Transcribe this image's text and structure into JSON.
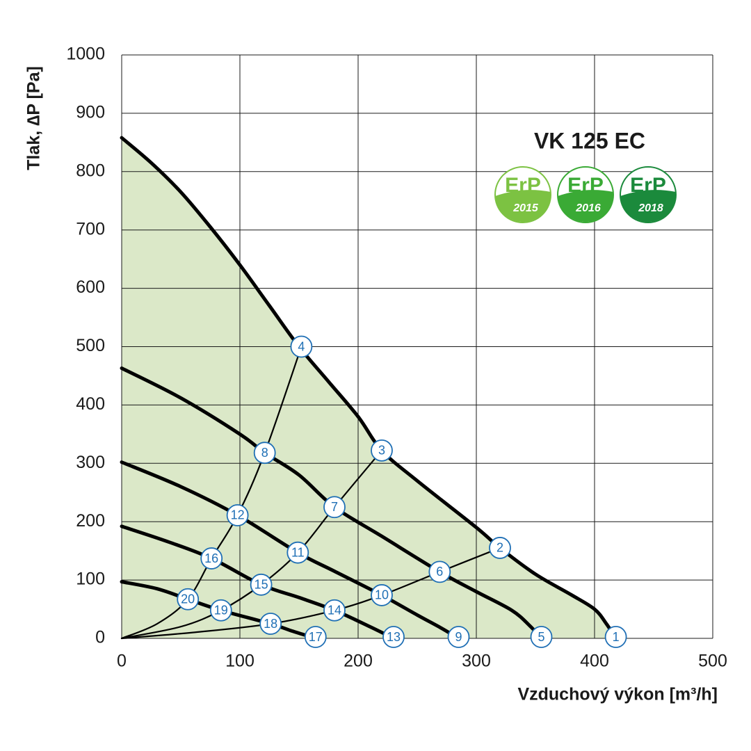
{
  "chart_data": {
    "type": "line",
    "title": "VK 125 EC",
    "x_label": "Vzduchový výkon [m³/h]",
    "y_label": "Tlak, ∆P [Pa]",
    "xlim": [
      0,
      500
    ],
    "ylim": [
      0,
      1000
    ],
    "xticks": [
      0,
      100,
      200,
      300,
      400,
      500
    ],
    "yticks": [
      0,
      100,
      200,
      300,
      400,
      500,
      600,
      700,
      800,
      900,
      1000
    ],
    "grid": true,
    "fill_color": "#dbe8c8",
    "series": [
      {
        "color": "#000000",
        "weight": "heavy",
        "fill": true,
        "x": [
          0,
          25,
          50,
          75,
          100,
          125,
          150,
          175,
          200,
          220,
          250,
          300,
          320,
          350,
          380,
          400,
          410,
          418
        ],
        "values": [
          858,
          815,
          765,
          705,
          640,
          570,
          500,
          440,
          380,
          322,
          270,
          190,
          155,
          110,
          75,
          50,
          25,
          0
        ]
      },
      {
        "color": "#000000",
        "weight": "heavy",
        "x": [
          0,
          50,
          100,
          121,
          150,
          180,
          220,
          269,
          300,
          330,
          345,
          355
        ],
        "values": [
          463,
          412,
          350,
          318,
          280,
          225,
          175,
          114,
          80,
          48,
          22,
          0
        ]
      },
      {
        "color": "#000000",
        "weight": "heavy",
        "x": [
          0,
          50,
          98,
          149,
          180,
          220,
          250,
          270,
          285
        ],
        "values": [
          302,
          260,
          211,
          147,
          115,
          74,
          40,
          18,
          0
        ]
      },
      {
        "color": "#000000",
        "weight": "heavy",
        "x": [
          0,
          40,
          76,
          118,
          150,
          180,
          210,
          230
        ],
        "values": [
          192,
          165,
          137,
          92,
          70,
          48,
          20,
          0
        ]
      },
      {
        "color": "#000000",
        "weight": "heavy",
        "x": [
          0,
          30,
          56,
          84,
          126,
          145,
          164
        ],
        "values": [
          97,
          85,
          67,
          48,
          25,
          12,
          0
        ]
      },
      {
        "color": "#000000",
        "weight": "light",
        "x": [
          0,
          30,
          56,
          76,
          98,
          121,
          152
        ],
        "values": [
          0,
          25,
          67,
          137,
          211,
          318,
          500
        ]
      },
      {
        "color": "#000000",
        "weight": "light",
        "x": [
          0,
          50,
          84,
          118,
          149,
          180,
          220
        ],
        "values": [
          0,
          20,
          48,
          92,
          147,
          225,
          322
        ]
      },
      {
        "color": "#000000",
        "weight": "light",
        "x": [
          0,
          60,
          126,
          180,
          220,
          269,
          320
        ],
        "values": [
          0,
          10,
          25,
          48,
          74,
          114,
          155
        ]
      }
    ],
    "marker_color": "#1f6fb5",
    "markers": [
      {
        "label": "1",
        "x": 418,
        "y": 0
      },
      {
        "label": "2",
        "x": 320,
        "y": 155
      },
      {
        "label": "3",
        "x": 220,
        "y": 322
      },
      {
        "label": "4",
        "x": 152,
        "y": 500
      },
      {
        "label": "5",
        "x": 355,
        "y": 0
      },
      {
        "label": "6",
        "x": 269,
        "y": 114
      },
      {
        "label": "7",
        "x": 180,
        "y": 225
      },
      {
        "label": "8",
        "x": 121,
        "y": 318
      },
      {
        "label": "9",
        "x": 285,
        "y": 0
      },
      {
        "label": "10",
        "x": 220,
        "y": 74
      },
      {
        "label": "11",
        "x": 149,
        "y": 147
      },
      {
        "label": "12",
        "x": 98,
        "y": 211
      },
      {
        "label": "13",
        "x": 230,
        "y": 0
      },
      {
        "label": "14",
        "x": 180,
        "y": 48
      },
      {
        "label": "15",
        "x": 118,
        "y": 92
      },
      {
        "label": "16",
        "x": 76,
        "y": 137
      },
      {
        "label": "17",
        "x": 164,
        "y": 0
      },
      {
        "label": "18",
        "x": 126,
        "y": 25
      },
      {
        "label": "19",
        "x": 84,
        "y": 48
      },
      {
        "label": "20",
        "x": 56,
        "y": 67
      }
    ],
    "badges": [
      {
        "text": "ErP",
        "year": "2015",
        "color": "#7cc242"
      },
      {
        "text": "ErP",
        "year": "2016",
        "color": "#3aaa35"
      },
      {
        "text": "ErP",
        "year": "2018",
        "color": "#1b8a3c"
      }
    ]
  }
}
